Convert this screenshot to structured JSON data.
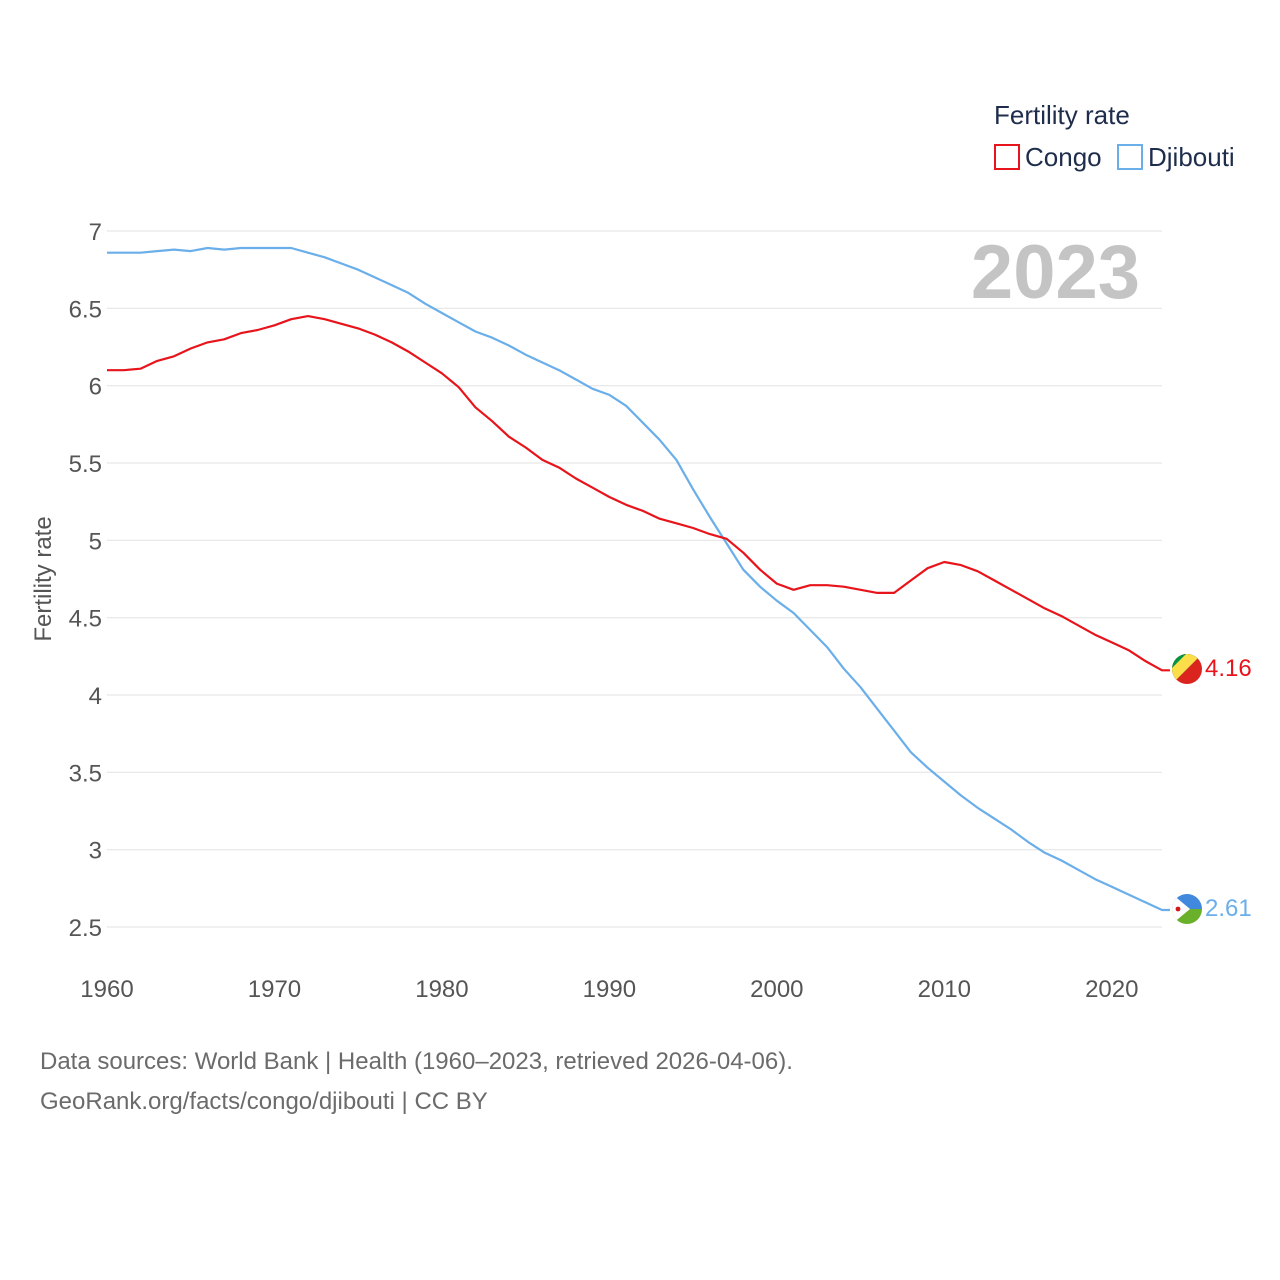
{
  "chart_data": {
    "type": "line",
    "legend_title": "Fertility rate",
    "ylabel": "Fertility rate",
    "xlabel": "",
    "year_label": "2023",
    "xlim": [
      1960,
      2023
    ],
    "ylim": [
      2.5,
      7
    ],
    "xticks": [
      1960,
      1970,
      1980,
      1990,
      2000,
      2010,
      2020
    ],
    "yticks": [
      2.5,
      3,
      3.5,
      4,
      4.5,
      5,
      5.5,
      6,
      6.5,
      7
    ],
    "ytick_labels": [
      "2.5",
      "3",
      "3.5",
      "4",
      "4.5",
      "5",
      "5.5",
      "6",
      "6.5",
      "7"
    ],
    "x": [
      1960,
      1961,
      1962,
      1963,
      1964,
      1965,
      1966,
      1967,
      1968,
      1969,
      1970,
      1971,
      1972,
      1973,
      1974,
      1975,
      1976,
      1977,
      1978,
      1979,
      1980,
      1981,
      1982,
      1983,
      1984,
      1985,
      1986,
      1987,
      1988,
      1989,
      1990,
      1991,
      1992,
      1993,
      1994,
      1995,
      1996,
      1997,
      1998,
      1999,
      2000,
      2001,
      2002,
      2003,
      2004,
      2005,
      2006,
      2007,
      2008,
      2009,
      2010,
      2011,
      2012,
      2013,
      2014,
      2015,
      2016,
      2017,
      2018,
      2019,
      2020,
      2021,
      2022,
      2023
    ],
    "series": [
      {
        "name": "Congo",
        "color": "#e8141b",
        "values": [
          6.1,
          6.1,
          6.11,
          6.16,
          6.19,
          6.24,
          6.28,
          6.3,
          6.34,
          6.36,
          6.39,
          6.43,
          6.45,
          6.43,
          6.4,
          6.37,
          6.33,
          6.28,
          6.22,
          6.15,
          6.08,
          5.99,
          5.86,
          5.77,
          5.67,
          5.6,
          5.52,
          5.47,
          5.4,
          5.34,
          5.28,
          5.23,
          5.19,
          5.14,
          5.11,
          5.08,
          5.04,
          5.01,
          4.92,
          4.81,
          4.72,
          4.68,
          4.71,
          4.71,
          4.7,
          4.68,
          4.66,
          4.66,
          4.74,
          4.82,
          4.86,
          4.84,
          4.8,
          4.74,
          4.68,
          4.62,
          4.56,
          4.51,
          4.45,
          4.39,
          4.34,
          4.29,
          4.22,
          4.16
        ],
        "end_label": "4.16",
        "flag_icon": "congo-flag-icon"
      },
      {
        "name": "Djibouti",
        "color": "#6aaeea",
        "values": [
          6.86,
          6.86,
          6.86,
          6.87,
          6.88,
          6.87,
          6.89,
          6.88,
          6.89,
          6.89,
          6.89,
          6.89,
          6.86,
          6.83,
          6.79,
          6.75,
          6.7,
          6.65,
          6.6,
          6.53,
          6.47,
          6.41,
          6.35,
          6.31,
          6.26,
          6.2,
          6.15,
          6.1,
          6.04,
          5.98,
          5.94,
          5.87,
          5.76,
          5.65,
          5.52,
          5.33,
          5.15,
          4.98,
          4.81,
          4.7,
          4.61,
          4.53,
          4.42,
          4.31,
          4.17,
          4.05,
          3.91,
          3.77,
          3.63,
          3.53,
          3.44,
          3.35,
          3.27,
          3.2,
          3.13,
          3.05,
          2.98,
          2.93,
          2.87,
          2.81,
          2.76,
          2.71,
          2.66,
          2.61
        ],
        "end_label": "2.61",
        "flag_icon": "djibouti-flag-icon"
      }
    ]
  },
  "footer": {
    "source_line": "Data sources: World Bank | Health (1960–2023, retrieved 2026-04-06).",
    "credit_line": "GeoRank.org/facts/congo/djibouti | CC BY"
  }
}
